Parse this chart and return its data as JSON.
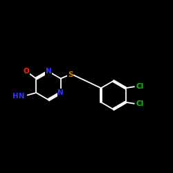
{
  "bg_color": "#000000",
  "bond_color": "#ffffff",
  "N_color": "#3333ff",
  "O_color": "#ff2200",
  "S_color": "#cc8800",
  "Cl_color": "#00cc00",
  "line_width": 1.3,
  "fig_size": [
    2.5,
    2.5
  ],
  "dpi": 100,
  "xlim": [
    0,
    10
  ],
  "ylim": [
    2,
    8.5
  ],
  "fs": 7.5
}
